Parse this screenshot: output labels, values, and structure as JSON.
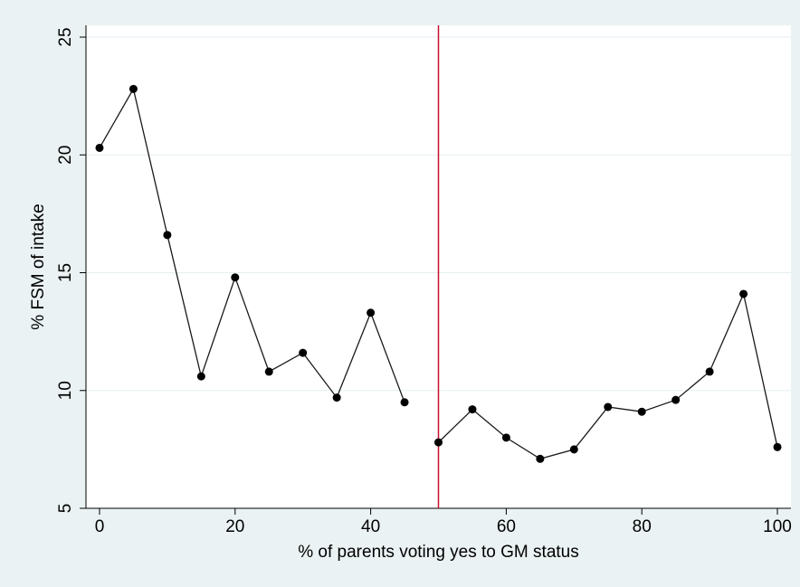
{
  "chart_data": {
    "type": "line",
    "title": "",
    "xlabel": "% of parents voting yes to GM status",
    "ylabel": "% FSM of intake",
    "xlim": [
      -2,
      102
    ],
    "ylim": [
      5,
      25.5
    ],
    "xticks": [
      0,
      20,
      40,
      60,
      80,
      100
    ],
    "yticks": [
      5,
      10,
      15,
      20,
      25
    ],
    "grid": "horizontal",
    "legend": "none",
    "cutoff_x": 50,
    "colors": {
      "plot_bg": "#ffffff",
      "page_bg": "#eaf2f3",
      "line": "#1a1a1a",
      "marker": "#000000",
      "cutoff": "#c8102e",
      "grid": "#e6eef0"
    },
    "series": [
      {
        "segment": "below-50",
        "x": [
          0,
          5,
          10,
          15,
          20,
          25,
          30,
          35,
          40,
          45
        ],
        "y": [
          20.3,
          22.8,
          16.6,
          10.6,
          14.8,
          10.8,
          11.6,
          9.7,
          13.3,
          9.5
        ]
      },
      {
        "segment": "50-and-above",
        "x": [
          50,
          55,
          60,
          65,
          70,
          75,
          80,
          85,
          90,
          95,
          100
        ],
        "y": [
          7.8,
          9.2,
          8.0,
          7.1,
          7.5,
          9.3,
          9.1,
          9.6,
          10.8,
          14.1,
          7.6
        ]
      }
    ]
  }
}
